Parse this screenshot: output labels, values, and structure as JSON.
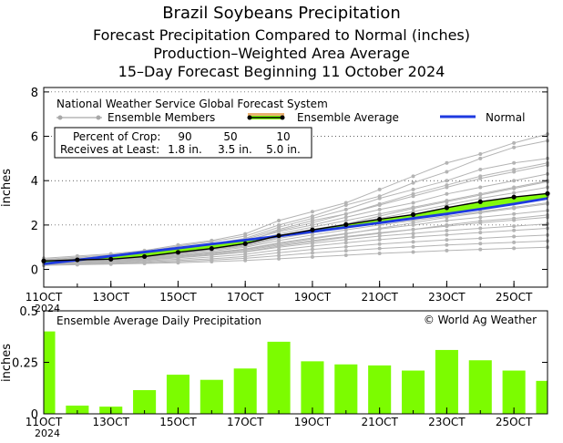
{
  "titles": {
    "line1": "Brazil Soybeans Precipitation",
    "line2": "Forecast Precipitation Compared to Normal (inches)",
    "line3": "Production–Weighted Area Average",
    "line4": "15–Day Forecast Beginning 11 October 2024"
  },
  "chart_data": [
    {
      "type": "line",
      "title": "National Weather Service Global Forecast System",
      "ylabel": "inches",
      "xlabel": "",
      "ylim": [
        -0.8,
        8.2
      ],
      "yticks": [
        0,
        2,
        4,
        6,
        8
      ],
      "xlim": [
        11,
        26
      ],
      "ticks": [
        {
          "x": 11,
          "label": "11OCT",
          "year": "2024"
        },
        {
          "x": 13,
          "label": "13OCT"
        },
        {
          "x": 15,
          "label": "15OCT"
        },
        {
          "x": 17,
          "label": "17OCT"
        },
        {
          "x": 19,
          "label": "19OCT"
        },
        {
          "x": 21,
          "label": "21OCT"
        },
        {
          "x": 23,
          "label": "23OCT"
        },
        {
          "x": 25,
          "label": "25OCT"
        }
      ],
      "x": [
        11,
        12,
        13,
        14,
        15,
        16,
        17,
        18,
        19,
        20,
        21,
        22,
        23,
        24,
        25,
        26
      ],
      "legend": {
        "ensemble_members": "Ensemble Members",
        "ensemble_average": "Ensemble Average",
        "normal": "Normal"
      },
      "crop_table": {
        "row1_label": "Percent of Crop:",
        "row2_label": "Receives at Least:",
        "percents": [
          "90",
          "50",
          "10"
        ],
        "amounts": [
          "1.8 in.",
          "3.5 in.",
          "5.0 in."
        ]
      },
      "series": [
        {
          "name": "Ensemble Average",
          "values": [
            0.38,
            0.43,
            0.46,
            0.58,
            0.77,
            0.94,
            1.16,
            1.52,
            1.78,
            2.02,
            2.26,
            2.47,
            2.78,
            3.05,
            3.26,
            3.42
          ]
        },
        {
          "name": "Normal",
          "values": [
            0.25,
            0.42,
            0.6,
            0.78,
            0.96,
            1.14,
            1.32,
            1.5,
            1.7,
            1.9,
            2.1,
            2.3,
            2.5,
            2.72,
            2.95,
            3.2
          ]
        }
      ],
      "members": [
        [
          0.5,
          0.6,
          0.7,
          0.85,
          1.1,
          1.3,
          1.6,
          2.2,
          2.6,
          3.0,
          3.6,
          4.2,
          4.8,
          5.2,
          5.7,
          6.1
        ],
        [
          0.45,
          0.55,
          0.65,
          0.8,
          1.05,
          1.25,
          1.5,
          2.0,
          2.4,
          2.9,
          3.3,
          3.9,
          4.4,
          5.0,
          5.5,
          5.8
        ],
        [
          0.4,
          0.5,
          0.6,
          0.75,
          0.95,
          1.15,
          1.4,
          1.9,
          2.3,
          2.7,
          3.2,
          3.6,
          4.0,
          4.5,
          4.8,
          5.0
        ],
        [
          0.35,
          0.45,
          0.55,
          0.7,
          0.9,
          1.1,
          1.35,
          1.8,
          2.2,
          2.5,
          2.9,
          3.3,
          3.7,
          4.1,
          4.4,
          4.7
        ],
        [
          0.42,
          0.5,
          0.58,
          0.68,
          0.85,
          1.05,
          1.3,
          1.7,
          2.0,
          2.35,
          2.7,
          3.0,
          3.4,
          3.7,
          4.0,
          4.3
        ],
        [
          0.38,
          0.45,
          0.52,
          0.62,
          0.8,
          1.0,
          1.2,
          1.6,
          1.9,
          2.2,
          2.5,
          2.8,
          3.1,
          3.4,
          3.7,
          4.0
        ],
        [
          0.36,
          0.42,
          0.5,
          0.6,
          0.75,
          0.95,
          1.15,
          1.5,
          1.8,
          2.05,
          2.3,
          2.6,
          2.9,
          3.2,
          3.45,
          3.7
        ],
        [
          0.34,
          0.4,
          0.46,
          0.55,
          0.7,
          0.88,
          1.05,
          1.4,
          1.65,
          1.9,
          2.15,
          2.4,
          2.65,
          2.9,
          3.1,
          3.3
        ],
        [
          0.32,
          0.38,
          0.44,
          0.52,
          0.66,
          0.82,
          1.0,
          1.3,
          1.55,
          1.78,
          2.0,
          2.2,
          2.4,
          2.6,
          2.8,
          3.0
        ],
        [
          0.3,
          0.36,
          0.42,
          0.5,
          0.62,
          0.76,
          0.92,
          1.2,
          1.42,
          1.62,
          1.82,
          2.0,
          2.2,
          2.35,
          2.5,
          2.65
        ],
        [
          0.28,
          0.34,
          0.4,
          0.46,
          0.58,
          0.7,
          0.86,
          1.1,
          1.3,
          1.48,
          1.65,
          1.8,
          1.95,
          2.1,
          2.22,
          2.35
        ],
        [
          0.26,
          0.31,
          0.36,
          0.42,
          0.52,
          0.64,
          0.78,
          1.0,
          1.18,
          1.34,
          1.5,
          1.62,
          1.75,
          1.85,
          1.95,
          2.05
        ],
        [
          0.24,
          0.28,
          0.32,
          0.38,
          0.46,
          0.56,
          0.68,
          0.88,
          1.05,
          1.2,
          1.34,
          1.46,
          1.56,
          1.66,
          1.76,
          1.85
        ],
        [
          0.22,
          0.26,
          0.3,
          0.34,
          0.4,
          0.48,
          0.58,
          0.75,
          0.9,
          1.02,
          1.14,
          1.24,
          1.33,
          1.4,
          1.48,
          1.55
        ],
        [
          0.2,
          0.24,
          0.27,
          0.3,
          0.35,
          0.42,
          0.5,
          0.62,
          0.74,
          0.84,
          0.94,
          1.02,
          1.1,
          1.16,
          1.22,
          1.28
        ],
        [
          0.18,
          0.21,
          0.24,
          0.27,
          0.3,
          0.35,
          0.4,
          0.48,
          0.56,
          0.64,
          0.72,
          0.78,
          0.85,
          0.9,
          0.95,
          1.0
        ],
        [
          0.4,
          0.48,
          0.56,
          0.66,
          0.82,
          1.0,
          1.25,
          1.75,
          2.1,
          2.5,
          2.95,
          3.4,
          3.8,
          4.2,
          4.5,
          4.8
        ],
        [
          0.33,
          0.4,
          0.48,
          0.58,
          0.72,
          0.9,
          1.1,
          1.45,
          1.75,
          2.05,
          2.4,
          2.75,
          3.05,
          3.35,
          3.65,
          3.95
        ],
        [
          0.29,
          0.35,
          0.41,
          0.49,
          0.6,
          0.74,
          0.9,
          1.15,
          1.38,
          1.6,
          1.85,
          2.1,
          2.35,
          2.55,
          2.75,
          2.95
        ],
        [
          0.27,
          0.32,
          0.37,
          0.44,
          0.54,
          0.66,
          0.8,
          1.05,
          1.25,
          1.45,
          1.62,
          1.8,
          2.0,
          2.18,
          2.3,
          2.45
        ]
      ]
    },
    {
      "type": "bar",
      "title": "Ensemble Average Daily Precipitation",
      "credit": "© World Ag Weather",
      "ylabel": "inches",
      "xlabel": "",
      "ylim": [
        0,
        0.5
      ],
      "yticks": [
        {
          "value": 0,
          "label": "0"
        },
        {
          "value": 0.25,
          "label": "0.25"
        },
        {
          "value": 0.5,
          "label": "0.5"
        }
      ],
      "xlim": [
        11,
        26
      ],
      "ticks": [
        {
          "x": 11,
          "label": "11OCT",
          "year": "2024"
        },
        {
          "x": 13,
          "label": "13OCT"
        },
        {
          "x": 15,
          "label": "15OCT"
        },
        {
          "x": 17,
          "label": "17OCT"
        },
        {
          "x": 19,
          "label": "19OCT"
        },
        {
          "x": 21,
          "label": "21OCT"
        },
        {
          "x": 23,
          "label": "23OCT"
        },
        {
          "x": 25,
          "label": "25OCT"
        }
      ],
      "x": [
        11,
        12,
        13,
        14,
        15,
        16,
        17,
        18,
        19,
        20,
        21,
        22,
        23,
        24,
        25,
        26
      ],
      "values": [
        0.4,
        0.04,
        0.035,
        0.115,
        0.19,
        0.165,
        0.22,
        0.35,
        0.255,
        0.24,
        0.235,
        0.21,
        0.31,
        0.26,
        0.21,
        0.16
      ],
      "color": "#7cfc00"
    }
  ]
}
